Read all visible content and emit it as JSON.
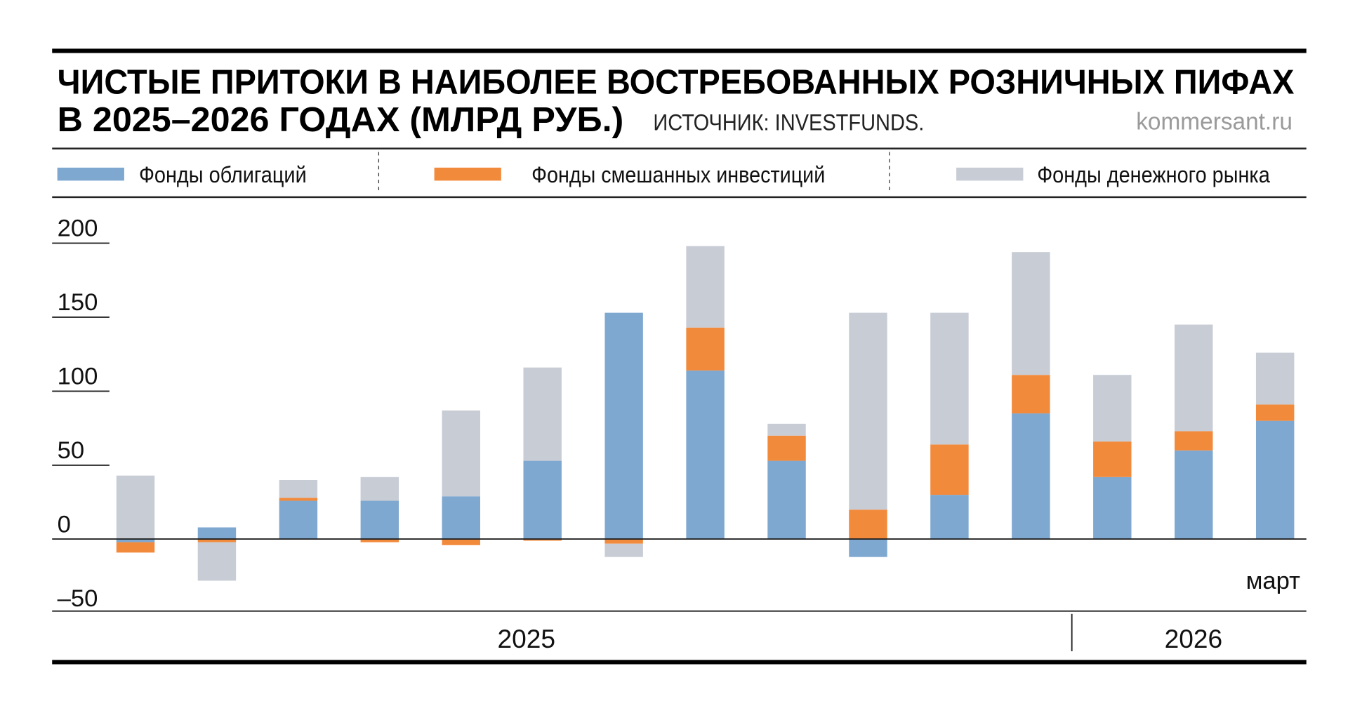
{
  "title_line1": "ЧИСТЫЕ ПРИТОКИ В НАИБОЛЕЕ ВОСТРЕБОВАННЫХ РОЗНИЧНЫХ ПИФАХ",
  "title_line2": "В 2025–2026 ГОДАХ (МЛРД РУБ.)",
  "source": "ИСТОЧНИК: INVESTFUNDS.",
  "brand": "kommersant.ru",
  "colors": {
    "bonds": "#7fa8d0",
    "mixed": "#f28a3c",
    "money_market": "#c8ccd5"
  },
  "chart_data": {
    "type": "bar",
    "stacked": true,
    "title": "ЧИСТЫЕ ПРИТОКИ В НАИБОЛЕЕ ВОСТРЕБОВАННЫХ РОЗНИЧНЫХ ПИФАХ В 2025–2026 ГОДАХ (МЛРД РУБ.)",
    "ylim": [
      -50,
      200
    ],
    "yticks": [
      "200",
      "150",
      "100",
      "50",
      "0",
      "–50"
    ],
    "ytick_values": [
      200,
      150,
      100,
      50,
      0,
      -50
    ],
    "last_category_label": "март",
    "year_labels": [
      "2025",
      "2026"
    ],
    "year_split_after_index": 11,
    "legend_position": "top",
    "series": [
      {
        "name": "Фонды облигаций",
        "color": "#7fa8d0",
        "values": [
          -2,
          8,
          26,
          26,
          29,
          53,
          153,
          114,
          53,
          -12,
          30,
          85,
          42,
          60,
          80
        ]
      },
      {
        "name": "Фонды смешанных инвестиций",
        "color": "#f28a3c",
        "values": [
          -7,
          -2,
          2,
          -2,
          -4,
          -1,
          -3,
          29,
          17,
          20,
          34,
          26,
          24,
          13,
          11
        ]
      },
      {
        "name": "Фонды денежного рынка",
        "color": "#c8ccd5",
        "values": [
          43,
          -26,
          12,
          16,
          58,
          63,
          -9,
          55,
          8,
          133,
          89,
          83,
          45,
          72,
          35
        ]
      }
    ]
  }
}
